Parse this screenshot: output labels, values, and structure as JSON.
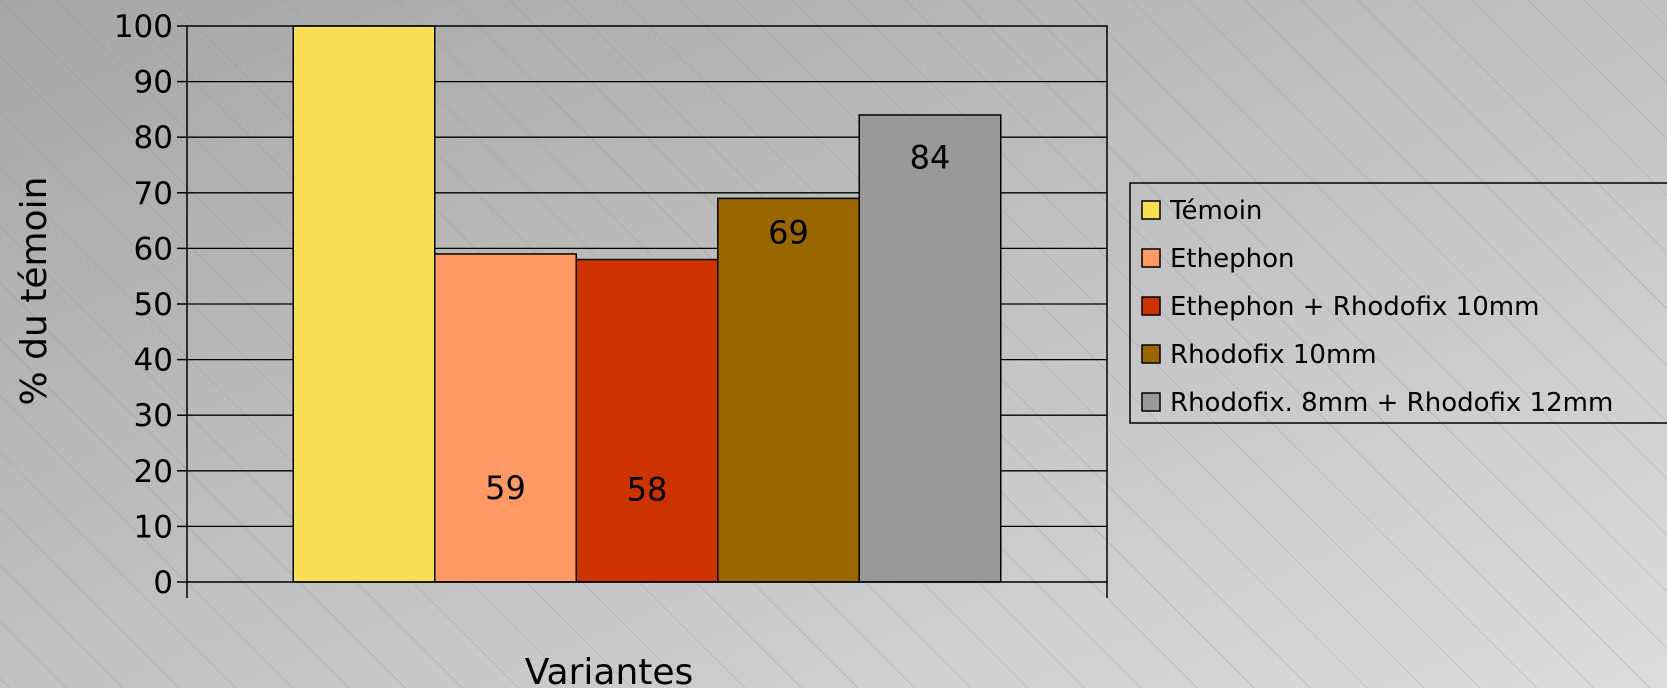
{
  "chart_data": {
    "type": "bar",
    "title": "",
    "xlabel": "Variantes",
    "ylabel": "% du témoin",
    "ylim": [
      0,
      100
    ],
    "y_ticks": [
      "0",
      "10",
      "20",
      "30",
      "40",
      "50",
      "60",
      "70",
      "80",
      "90",
      "100"
    ],
    "grid": true,
    "legend_position": "right",
    "categories": [
      ""
    ],
    "series": [
      {
        "name": "Témoin",
        "values": [
          100
        ],
        "color": "#F9DF55",
        "label": ""
      },
      {
        "name": "Ethephon",
        "values": [
          59
        ],
        "color": "#FF9966",
        "label": "59"
      },
      {
        "name": "Ethephon + Rhodofix 10mm",
        "values": [
          58
        ],
        "color": "#CC3300",
        "label": "58"
      },
      {
        "name": "Rhodofix 10mm",
        "values": [
          69
        ],
        "color": "#996600",
        "label": "69"
      },
      {
        "name": "Rhodofix. 8mm + Rhodofix 12mm",
        "values": [
          84
        ],
        "color": "#999999",
        "label": "84"
      }
    ]
  }
}
